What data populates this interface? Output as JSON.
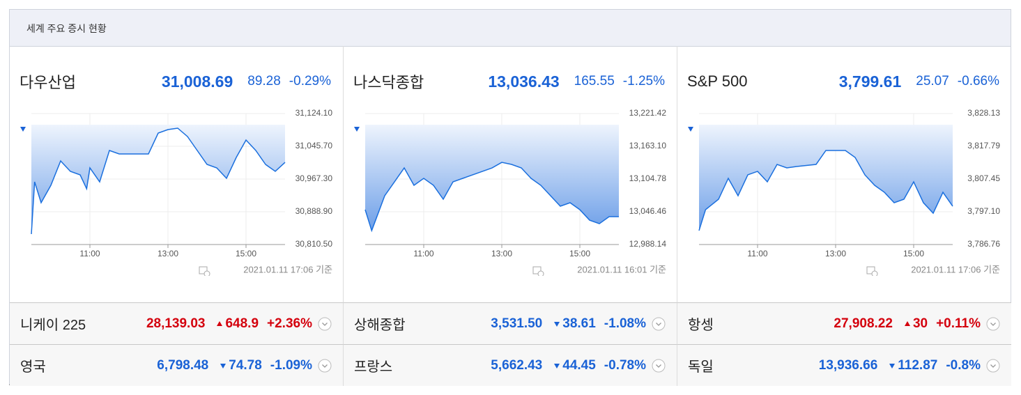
{
  "header": {
    "title": "세계 주요 증시 현황"
  },
  "chart_data": [
    {
      "type": "line",
      "title": "다우산업",
      "price": "31,008.69",
      "change": "89.28",
      "change_pct": "-0.29%",
      "direction": "down",
      "timestamp": "2021.01.11 17:06 기준",
      "color": "#1a6fde",
      "grid": true,
      "x": [
        "09:30",
        "09:35",
        "09:45",
        "10:00",
        "10:15",
        "10:30",
        "10:45",
        "10:55",
        "11:00",
        "11:15",
        "11:30",
        "11:45",
        "12:00",
        "12:30",
        "12:45",
        "13:00",
        "13:15",
        "13:30",
        "13:45",
        "14:00",
        "14:15",
        "14:30",
        "14:45",
        "15:00",
        "15:15",
        "15:30",
        "15:45",
        "16:00"
      ],
      "values": [
        30835.5,
        30960.6,
        30910.6,
        30952.3,
        31010.7,
        30985.7,
        30977.3,
        30944.0,
        30994.0,
        30960.6,
        31035.7,
        31027.4,
        31027.4,
        31027.4,
        31077.4,
        31085.7,
        31089.1,
        31069.1,
        31035.7,
        31002.3,
        30994.0,
        30969.0,
        31019.0,
        31060.7,
        31035.7,
        31002.3,
        30985.7,
        31007.3
      ],
      "xlim": [
        "09:30",
        "16:00"
      ],
      "xticks": [
        "11:00",
        "13:00",
        "15:00"
      ],
      "ylim": [
        30810.5,
        31124.1
      ],
      "yticks": [
        {
          "value": 30810.5,
          "label": "30,810.50"
        },
        {
          "value": 30888.9,
          "label": "30,888.90"
        },
        {
          "value": 30967.3,
          "label": "30,967.30"
        },
        {
          "value": 31045.7,
          "label": "31,045.70"
        },
        {
          "value": 31124.1,
          "label": "31,124.10"
        }
      ]
    },
    {
      "type": "line",
      "title": "나스닥종합",
      "price": "13,036.43",
      "change": "165.55",
      "change_pct": "-1.25%",
      "direction": "down",
      "timestamp": "2021.01.11 16:01 기준",
      "color": "#1a6fde",
      "grid": true,
      "x": [
        "09:30",
        "09:40",
        "10:00",
        "10:15",
        "10:30",
        "10:45",
        "11:00",
        "11:15",
        "11:30",
        "11:45",
        "12:00",
        "12:30",
        "12:45",
        "13:00",
        "13:15",
        "13:30",
        "13:45",
        "14:00",
        "14:15",
        "14:30",
        "14:45",
        "15:00",
        "15:15",
        "15:30",
        "15:45",
        "16:00"
      ],
      "values": [
        13050.2,
        13012.9,
        13075.0,
        13099.8,
        13124.6,
        13093.6,
        13106.0,
        13093.6,
        13068.8,
        13099.8,
        13106.0,
        13118.4,
        13124.6,
        13134.5,
        13130.8,
        13124.6,
        13106.0,
        13093.6,
        13075.0,
        13056.4,
        13062.6,
        13050.2,
        13031.5,
        13025.3,
        13037.7,
        13037.7
      ],
      "xlim": [
        "09:30",
        "16:00"
      ],
      "xticks": [
        "11:00",
        "13:00",
        "15:00"
      ],
      "ylim": [
        12988.14,
        13221.42
      ],
      "yticks": [
        {
          "value": 12988.14,
          "label": "12,988.14"
        },
        {
          "value": 13046.46,
          "label": "13,046.46"
        },
        {
          "value": 13104.78,
          "label": "13,104.78"
        },
        {
          "value": 13163.1,
          "label": "13,163.10"
        },
        {
          "value": 13221.42,
          "label": "13,221.42"
        }
      ]
    },
    {
      "type": "line",
      "title": "S&P 500",
      "price": "3,799.61",
      "change": "25.07",
      "change_pct": "-0.66%",
      "direction": "down",
      "timestamp": "2021.01.11 17:06 기준",
      "color": "#1a6fde",
      "grid": true,
      "x": [
        "09:30",
        "09:40",
        "10:00",
        "10:15",
        "10:30",
        "10:45",
        "11:00",
        "11:15",
        "11:30",
        "11:45",
        "12:00",
        "12:30",
        "12:45",
        "13:00",
        "13:15",
        "13:30",
        "13:45",
        "14:00",
        "14:15",
        "14:30",
        "14:45",
        "15:00",
        "15:15",
        "15:30",
        "15:45",
        "16:00"
      ],
      "values": [
        3791.16,
        3797.76,
        3801.06,
        3807.67,
        3802.16,
        3808.77,
        3809.87,
        3806.57,
        3812.07,
        3810.97,
        3811.41,
        3812.07,
        3816.47,
        3816.47,
        3816.47,
        3814.27,
        3808.77,
        3805.46,
        3803.26,
        3799.96,
        3801.06,
        3806.57,
        3799.96,
        3796.66,
        3803.26,
        3798.86
      ],
      "xlim": [
        "09:30",
        "16:00"
      ],
      "xticks": [
        "11:00",
        "13:00",
        "15:00"
      ],
      "ylim": [
        3786.76,
        3828.13
      ],
      "yticks": [
        {
          "value": 3786.76,
          "label": "3,786.76"
        },
        {
          "value": 3797.1,
          "label": "3,797.10"
        },
        {
          "value": 3807.45,
          "label": "3,807.45"
        },
        {
          "value": 3817.79,
          "label": "3,817.79"
        },
        {
          "value": 3828.13,
          "label": "3,828.13"
        }
      ]
    }
  ],
  "rows": [
    [
      {
        "name": "니케이 225",
        "price": "28,139.03",
        "change": "648.9",
        "change_pct": "+2.36%",
        "direction": "up"
      },
      {
        "name": "상해종합",
        "price": "3,531.50",
        "change": "38.61",
        "change_pct": "-1.08%",
        "direction": "down"
      },
      {
        "name": "항셍",
        "price": "27,908.22",
        "change": "30",
        "change_pct": "+0.11%",
        "direction": "up"
      }
    ],
    [
      {
        "name": "영국",
        "price": "6,798.48",
        "change": "74.78",
        "change_pct": "-1.09%",
        "direction": "down"
      },
      {
        "name": "프랑스",
        "price": "5,662.43",
        "change": "44.45",
        "change_pct": "-0.78%",
        "direction": "down"
      },
      {
        "name": "독일",
        "price": "13,936.66",
        "change": "112.87",
        "change_pct": "-0.8%",
        "direction": "down"
      }
    ]
  ]
}
